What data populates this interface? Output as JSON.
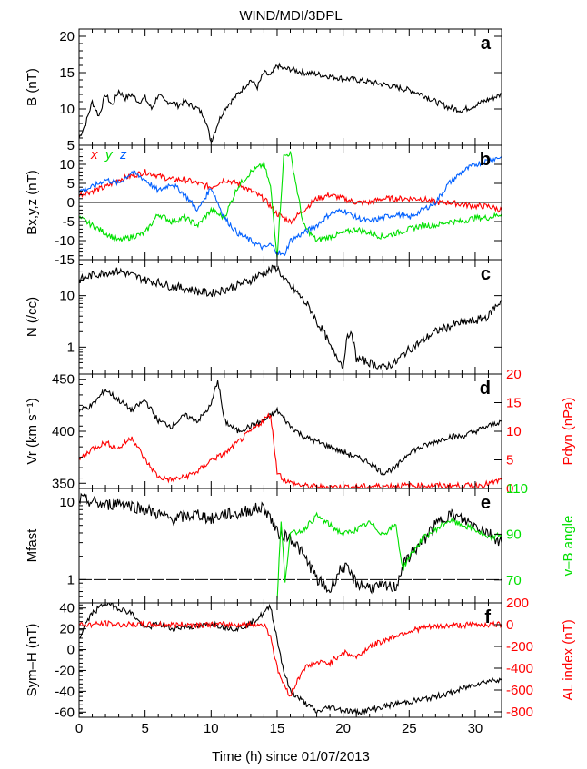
{
  "title": "WIND/MDI/3DPL",
  "xlabel": "Time (h) since 01/07/2013",
  "chart_data": {
    "type": "line",
    "title": "WIND/MDI/3DPL",
    "xlabel": "Time (h) since 01/07/2013",
    "xlim": [
      0,
      32
    ],
    "x_ticks": [
      "0",
      "5",
      "10",
      "15",
      "20",
      "25",
      "30"
    ],
    "colors": {
      "black": "#000000",
      "red": "#ff0000",
      "green": "#00e000",
      "blue": "#0060ff"
    },
    "panels": [
      {
        "letter": "a",
        "ylabel": "B (nT)",
        "ylim": [
          5,
          21
        ],
        "y_ticks": [
          "5",
          "10",
          "15",
          "20"
        ],
        "series": [
          {
            "color": "black",
            "x": [
              0,
              0.5,
              1,
              1.5,
              2,
              2.5,
              3,
              3.5,
              4,
              4.5,
              5,
              5.5,
              6,
              6.5,
              7,
              7.5,
              8,
              8.5,
              9,
              9.5,
              10,
              10.5,
              11,
              11.5,
              12,
              12.5,
              13,
              13.5,
              14,
              14.5,
              15,
              15.5,
              16,
              17,
              18,
              19,
              20,
              21,
              22,
              23,
              24,
              25,
              26,
              27,
              28,
              29,
              30,
              31,
              32
            ],
            "y": [
              6,
              8,
              11,
              9,
              12,
              10.5,
              12.5,
              11.5,
              12,
              11,
              11.5,
              10,
              12,
              11,
              11,
              10.5,
              11,
              10.5,
              10,
              9,
              5.5,
              8,
              10,
              11,
              12,
              13,
              14,
              13,
              15,
              14.5,
              16,
              15.5,
              15.5,
              15,
              14.8,
              14.5,
              14.2,
              14,
              13.7,
              13.4,
              13,
              12.6,
              12,
              11,
              10.2,
              9.8,
              10.5,
              11.3,
              12
            ]
          }
        ]
      },
      {
        "letter": "b",
        "ylabel": "Bx,y,z (nT)",
        "ylim": [
          -15,
          15
        ],
        "y_ticks": [
          "-15",
          "-10",
          "-5",
          "0",
          "5",
          "10"
        ],
        "zero_line": true,
        "component_labels": [
          "x",
          "y",
          "z"
        ],
        "series": [
          {
            "name": "x",
            "color": "red",
            "x": [
              0,
              1,
              2,
              3,
              4,
              5,
              6,
              7,
              8,
              9,
              10,
              11,
              12,
              13,
              14,
              15,
              16,
              17,
              18,
              19,
              20,
              21,
              22,
              23,
              24,
              25,
              26,
              27,
              28,
              29,
              30,
              31,
              32
            ],
            "y": [
              2,
              3,
              4,
              6,
              7,
              8,
              7,
              6,
              6,
              5,
              4,
              6,
              5,
              3,
              1,
              -3,
              -5,
              -2,
              1,
              2,
              1,
              0,
              0,
              1,
              1,
              1,
              1,
              0,
              0,
              -0.5,
              -1,
              -1,
              -2
            ]
          },
          {
            "name": "y",
            "color": "green",
            "x": [
              0,
              1,
              2,
              3,
              4,
              5,
              6,
              7,
              8,
              9,
              10,
              11,
              12,
              13,
              14,
              14.5,
              15,
              15.5,
              16,
              17,
              18,
              19,
              20,
              21,
              22,
              23,
              24,
              25,
              26,
              27,
              28,
              29,
              30,
              31,
              32
            ],
            "y": [
              -4,
              -6,
              -8,
              -10,
              -9,
              -8,
              -3,
              -5,
              -4,
              -6,
              -2,
              -4,
              4,
              8,
              10,
              4,
              -14,
              12,
              13,
              -6,
              -10,
              -9,
              -8,
              -7,
              -8,
              -9,
              -8,
              -7,
              -6,
              -6,
              -5,
              -5,
              -4,
              -4,
              -3
            ]
          },
          {
            "name": "z",
            "color": "blue",
            "x": [
              0,
              1,
              2,
              3,
              4,
              5,
              6,
              7,
              8,
              9,
              10,
              11,
              12,
              13,
              14,
              14.5,
              15,
              15.5,
              16,
              17,
              18,
              19,
              20,
              21,
              22,
              23,
              24,
              25,
              26,
              27,
              28,
              29,
              30,
              31,
              32
            ],
            "y": [
              3,
              4,
              6,
              5,
              8,
              6,
              3,
              5,
              2,
              -2,
              4,
              -4,
              -8,
              -10,
              -12,
              -11,
              -13,
              -14,
              -10,
              -8,
              -6,
              -3,
              -2,
              -4,
              -5,
              -4,
              -3,
              -4,
              -2,
              0,
              5,
              8,
              10,
              11,
              12
            ]
          }
        ]
      },
      {
        "letter": "c",
        "ylabel": "N (/cc)",
        "yscale": "log",
        "ylim": [
          0.3,
          50
        ],
        "y_ticks": [
          "1",
          "10"
        ],
        "y_tick_values": [
          1,
          10
        ],
        "series": [
          {
            "color": "black",
            "x": [
              0,
              1,
              2,
              3,
              4,
              5,
              6,
              7,
              8,
              9,
              10,
              11,
              12,
              13,
              14,
              15,
              15.5,
              16,
              17,
              18,
              19,
              20,
              20.5,
              21,
              22,
              23,
              24,
              25,
              26,
              27,
              28,
              29,
              30,
              31,
              32
            ],
            "y": [
              20,
              25,
              28,
              30,
              25,
              20,
              18,
              15,
              14,
              12,
              11,
              13,
              16,
              20,
              28,
              35,
              20,
              15,
              8,
              3,
              1,
              0.4,
              2,
              0.6,
              0.5,
              0.4,
              0.5,
              0.9,
              1.3,
              2,
              2.5,
              3,
              3.2,
              4,
              8
            ]
          }
        ]
      },
      {
        "letter": "d",
        "ylabel": "Vr (km s⁻¹)",
        "ylim": [
          345,
          455
        ],
        "y_ticks": [
          "350",
          "400",
          "450"
        ],
        "right_axis": {
          "label": "Pdyn (nPa)",
          "color": "red",
          "ylim": [
            0,
            20
          ],
          "y_ticks": [
            "0",
            "5",
            "10",
            "15",
            "20"
          ],
          "y_tick_values": [
            0,
            5,
            10,
            15,
            20
          ]
        },
        "series": [
          {
            "name": "Vr",
            "color": "black",
            "axis": "left",
            "x": [
              0,
              1,
              2,
              3,
              4,
              5,
              6,
              7,
              8,
              9,
              10,
              10.5,
              11,
              12,
              13,
              14,
              15,
              16,
              17,
              18,
              19,
              20,
              21,
              22,
              23,
              24,
              25,
              26,
              27,
              28,
              29,
              30,
              31,
              32
            ],
            "y": [
              420,
              425,
              440,
              430,
              420,
              430,
              410,
              405,
              415,
              410,
              425,
              450,
              410,
              400,
              405,
              410,
              420,
              405,
              395,
              390,
              385,
              380,
              375,
              370,
              360,
              365,
              380,
              385,
              390,
              395,
              395,
              400,
              405,
              410
            ]
          },
          {
            "name": "Pdyn",
            "color": "red",
            "axis": "right",
            "x": [
              0,
              1,
              2,
              3,
              4,
              5,
              6,
              7,
              8,
              9,
              10,
              11,
              12,
              13,
              14,
              14.5,
              15,
              15.5,
              16,
              17,
              18,
              19,
              20,
              21,
              22,
              23,
              24,
              25,
              26,
              27,
              28,
              29,
              30,
              31,
              32
            ],
            "y": [
              5,
              7,
              8,
              7,
              9,
              5,
              2,
              1.5,
              2,
              3,
              5,
              6,
              8,
              10,
              12,
              13,
              3,
              1.5,
              1,
              0.5,
              0.3,
              0.3,
              0.3,
              0.3,
              0.4,
              0.4,
              0.5,
              0.5,
              0.5,
              0.5,
              0.5,
              0.5,
              0.5,
              0.8,
              1.5
            ]
          }
        ]
      },
      {
        "letter": "e",
        "ylabel": "Mfast",
        "yscale": "log",
        "ylim": [
          0.5,
          15
        ],
        "y_ticks": [
          "1",
          "10"
        ],
        "y_tick_values": [
          1,
          10
        ],
        "unity_line": true,
        "right_axis": {
          "label": "v–B angle",
          "color": "green",
          "ylim": [
            60,
            110
          ],
          "y_ticks": [
            "70",
            "90",
            "110"
          ],
          "y_tick_values": [
            70,
            90,
            110
          ]
        },
        "series": [
          {
            "name": "Mfast",
            "color": "black",
            "axis": "left",
            "x": [
              0,
              1,
              2,
              3,
              4,
              5,
              6,
              7,
              8,
              9,
              10,
              11,
              12,
              13,
              14,
              15,
              16,
              17,
              18,
              19,
              20,
              21,
              22,
              23,
              24,
              25,
              26,
              27,
              28,
              29,
              30,
              31,
              32
            ],
            "y": [
              11,
              10,
              9,
              10,
              9,
              8,
              7,
              6,
              6.5,
              7,
              6,
              7,
              7,
              8,
              8.5,
              4,
              3.5,
              2,
              1,
              0.7,
              1.5,
              0.9,
              0.8,
              0.8,
              0.8,
              2,
              3,
              5,
              7,
              6,
              5,
              4,
              3
            ]
          },
          {
            "name": "v-B angle",
            "color": "green",
            "axis": "right",
            "x": [
              15,
              15.3,
              15.6,
              16,
              17,
              18,
              19,
              20,
              21,
              22,
              23,
              24,
              24.5,
              25,
              26,
              27,
              28,
              29,
              30,
              31,
              32
            ],
            "y": [
              62,
              95,
              70,
              90,
              92,
              98,
              94,
              90,
              92,
              95,
              90,
              94,
              75,
              80,
              88,
              92,
              96,
              94,
              92,
              88,
              90
            ]
          }
        ]
      },
      {
        "letter": "f",
        "ylabel": "Sym–H (nT)",
        "ylim": [
          -65,
          45
        ],
        "y_ticks": [
          "-60",
          "-40",
          "-20",
          "0",
          "20",
          "40"
        ],
        "right_axis": {
          "label": "AL index (nT)",
          "color": "red",
          "ylim": [
            -850,
            200
          ],
          "y_ticks": [
            "-800",
            "-600",
            "-400",
            "-200",
            "0",
            "200"
          ],
          "y_tick_values": [
            -800,
            -600,
            -400,
            -200,
            0,
            200
          ]
        },
        "series": [
          {
            "name": "Sym-H",
            "color": "black",
            "axis": "left",
            "x": [
              0,
              0.5,
              1,
              2,
              3,
              4,
              5,
              6,
              7,
              8,
              9,
              10,
              11,
              12,
              13,
              14,
              14.5,
              15,
              15.5,
              16,
              17,
              18,
              19,
              20,
              21,
              22,
              23,
              24,
              25,
              26,
              27,
              28,
              29,
              30,
              31,
              32
            ],
            "y": [
              10,
              25,
              35,
              45,
              40,
              35,
              20,
              25,
              20,
              22,
              22,
              25,
              22,
              20,
              25,
              35,
              42,
              10,
              -20,
              -40,
              -50,
              -60,
              -55,
              -58,
              -60,
              -58,
              -55,
              -52,
              -50,
              -48,
              -45,
              -42,
              -38,
              -33,
              -30,
              -28
            ]
          },
          {
            "name": "AL index",
            "color": "red",
            "axis": "right",
            "x": [
              0,
              1,
              2,
              3,
              4,
              5,
              6,
              7,
              8,
              9,
              10,
              11,
              12,
              13,
              14,
              14.5,
              15,
              15.5,
              16,
              17,
              18,
              19,
              20,
              21,
              22,
              23,
              24,
              25,
              26,
              27,
              28,
              29,
              30,
              31,
              32
            ],
            "y": [
              0,
              0,
              10,
              0,
              0,
              0,
              0,
              0,
              0,
              0,
              0,
              0,
              0,
              0,
              0,
              -100,
              -400,
              -550,
              -650,
              -400,
              -350,
              -350,
              -250,
              -300,
              -200,
              -150,
              -100,
              -60,
              -30,
              -20,
              -10,
              -5,
              0,
              0,
              0
            ]
          }
        ]
      }
    ]
  }
}
